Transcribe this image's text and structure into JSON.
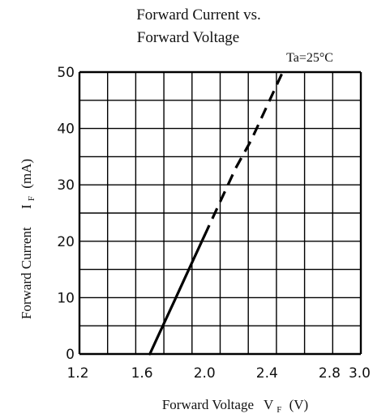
{
  "chart_data": {
    "type": "line",
    "title_line1": "Forward Current vs.",
    "title_line2": "Forward Voltage",
    "annotation": "Ta=25°C",
    "xlabel_main": "Forward Voltage",
    "xlabel_symbol": "V",
    "xlabel_sub": "F",
    "xlabel_unit": "(V)",
    "ylabel_main": "Forward Current",
    "ylabel_symbol": "I",
    "ylabel_sub": "F",
    "ylabel_unit": "(mA)",
    "xlim": [
      1.2,
      3.0
    ],
    "ylim": [
      0,
      50
    ],
    "x_ticks": [
      "1.2",
      "1.6",
      "2.0",
      "2.4",
      "2.8",
      "3.0"
    ],
    "y_ticks": [
      "0",
      "10",
      "20",
      "30",
      "40",
      "50"
    ],
    "grid": true,
    "series": [
      {
        "values": [
          {
            "x": 1.65,
            "y": 0
          },
          {
            "x": 1.7,
            "y": 3
          },
          {
            "x": 1.8,
            "y": 9
          },
          {
            "x": 1.9,
            "y": 15
          },
          {
            "x": 2.0,
            "y": 21
          },
          {
            "x": 2.1,
            "y": 27
          },
          {
            "x": 2.2,
            "y": 33
          },
          {
            "x": 2.3,
            "y": 38
          },
          {
            "x": 2.4,
            "y": 44
          },
          {
            "x": 2.5,
            "y": 50
          }
        ]
      }
    ]
  }
}
